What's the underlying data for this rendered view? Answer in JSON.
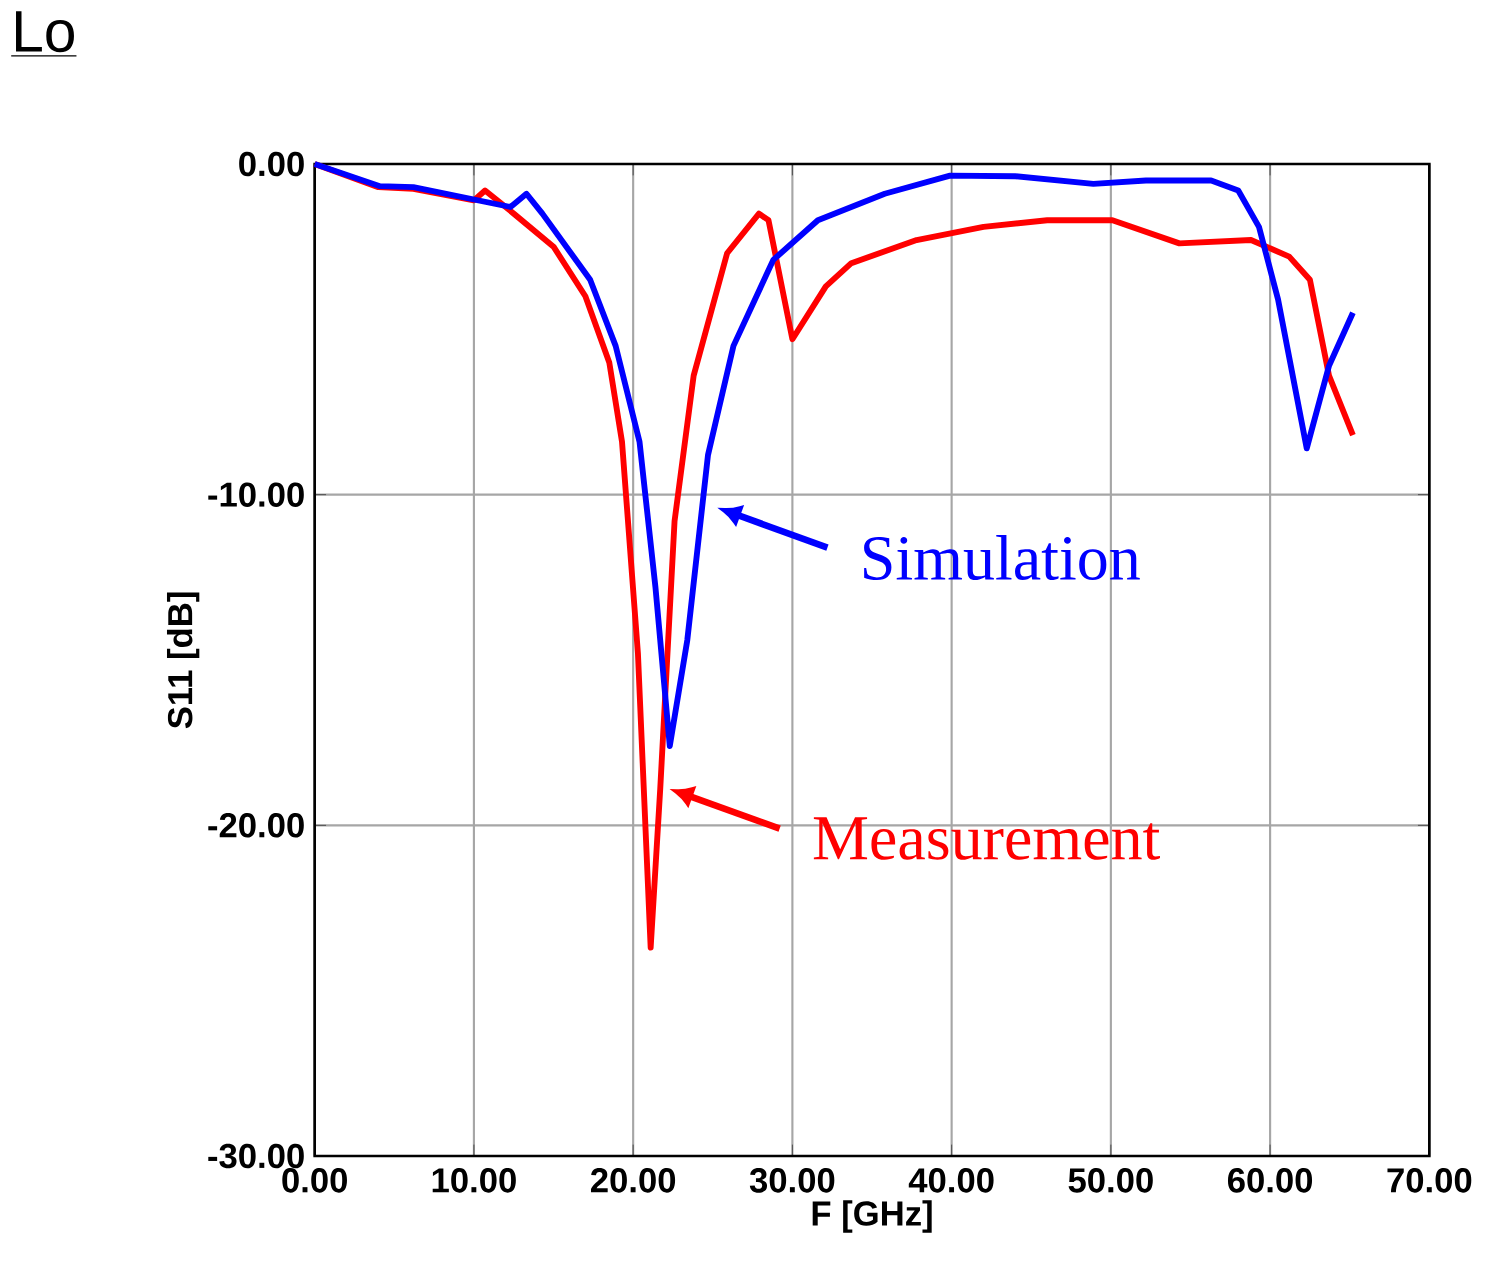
{
  "chart_data": {
    "type": "line",
    "title": "Lo",
    "xlabel": "F [GHz]",
    "ylabel": "S11 [dB]",
    "xlim": [
      0,
      70
    ],
    "ylim": [
      -30,
      0
    ],
    "xticks": [
      {
        "value": 0,
        "label": "0.00"
      },
      {
        "value": 10,
        "label": "10.00"
      },
      {
        "value": 20,
        "label": "20.00"
      },
      {
        "value": 30,
        "label": "30.00"
      },
      {
        "value": 40,
        "label": "40.00"
      },
      {
        "value": 50,
        "label": "50.00"
      },
      {
        "value": 60,
        "label": "60.00"
      },
      {
        "value": 70,
        "label": "70.00"
      }
    ],
    "yticks": [
      {
        "value": -30,
        "label": "-30.00"
      },
      {
        "value": -20,
        "label": "-20.00"
      },
      {
        "value": -10,
        "label": "-10.00"
      },
      {
        "value": 0,
        "label": "0.00"
      }
    ],
    "grid": true,
    "line_style": "solid",
    "marker": "none",
    "series": [
      {
        "color": "#ff0000",
        "x": [
          0,
          4,
          6.2,
          10,
          10.7,
          12.5,
          15,
          17,
          18.5,
          19.3,
          20.3,
          21.1,
          21.7,
          22.6,
          23.8,
          25.9,
          27.9,
          28.5,
          30,
          32.1,
          33.7,
          37.8,
          42,
          46,
          50.1,
          54.3,
          58.8,
          61.2,
          62.5,
          63.7,
          65.2
        ],
        "values": [
          0,
          -0.7,
          -0.75,
          -1.1,
          -0.8,
          -1.5,
          -2.5,
          -4,
          -6,
          -8.4,
          -14.8,
          -23.7,
          -18.9,
          -10.8,
          -6.4,
          -2.7,
          -1.5,
          -1.7,
          -5.3,
          -3.7,
          -3,
          -2.3,
          -1.9,
          -1.7,
          -1.7,
          -2.4,
          -2.3,
          -2.8,
          -3.5,
          -6.4,
          -8.2
        ]
      },
      {
        "color": "#0000ff",
        "x": [
          0,
          4.1,
          6.2,
          12.3,
          13.3,
          14.3,
          17.3,
          18.9,
          20.4,
          21.4,
          22.3,
          23.4,
          24.7,
          26.3,
          28.8,
          31.6,
          35.8,
          39.9,
          44,
          48.9,
          52.2,
          56.3,
          58,
          59.3,
          60.5,
          62.3,
          63.7,
          65.2
        ],
        "values": [
          0,
          -0.67,
          -0.7,
          -1.3,
          -0.9,
          -1.5,
          -3.5,
          -5.5,
          -8.4,
          -12.8,
          -17.6,
          -14.4,
          -8.8,
          -5.5,
          -2.9,
          -1.7,
          -0.9,
          -0.35,
          -0.37,
          -0.6,
          -0.5,
          -0.5,
          -0.8,
          -1.9,
          -4.1,
          -8.6,
          -6.1,
          -4.5
        ]
      }
    ],
    "annotations": [
      {
        "text": "Simulation",
        "x": 24.7,
        "y": -10.4
      },
      {
        "text": "Measurement",
        "x": 21.7,
        "y": -18.9
      }
    ]
  }
}
